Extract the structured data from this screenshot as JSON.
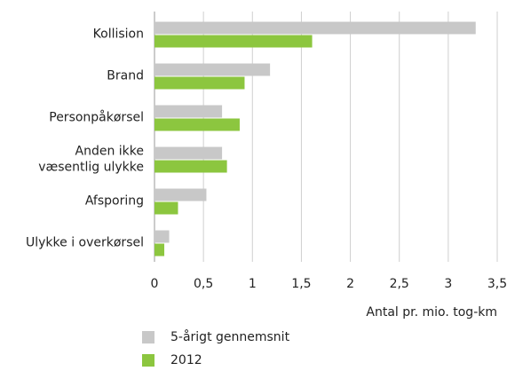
{
  "chart_data": {
    "type": "bar",
    "orientation": "horizontal",
    "categories": [
      "Kollision",
      "Brand",
      "Personpåkørsel",
      "Anden ikke væsentlig ulykke",
      "Afsporing",
      "Ulykke i overkørsel"
    ],
    "series": [
      {
        "name": "5-årigt gennemsnit",
        "color": "#c8c8c8",
        "values": [
          3.28,
          1.18,
          0.69,
          0.69,
          0.53,
          0.15
        ]
      },
      {
        "name": "2012",
        "color": "#8cc63f",
        "values": [
          1.61,
          0.92,
          0.87,
          0.74,
          0.24,
          0.1
        ]
      }
    ],
    "xlim": [
      0,
      3.5
    ],
    "xticks": [
      0,
      {
        "value": 0.5,
        "label": "0,5"
      },
      1,
      {
        "value": 1.5,
        "label": "1,5"
      },
      2,
      {
        "value": 2.5,
        "label": "2,5"
      },
      3,
      {
        "value": 3.5,
        "label": "3,5"
      }
    ],
    "xlabel": "Antal pr. mio. tog-km",
    "grid": true
  }
}
